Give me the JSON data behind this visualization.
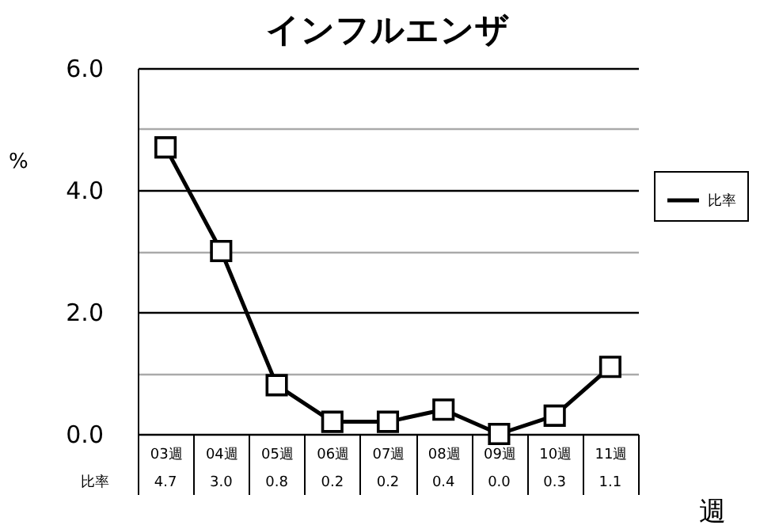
{
  "chart_data": {
    "type": "line",
    "title": "インフルエンザ",
    "ylabel": "%",
    "xlabel": "週",
    "categories": [
      "03週",
      "04週",
      "05週",
      "06週",
      "07週",
      "08週",
      "09週",
      "10週",
      "11週"
    ],
    "series": [
      {
        "name": "比率",
        "color": "#000000",
        "values": [
          4.7,
          3.0,
          0.8,
          0.2,
          0.2,
          0.4,
          0.0,
          0.3,
          1.1
        ],
        "value_labels": [
          "4.7",
          "3.0",
          "0.8",
          "0.2",
          "0.2",
          "0.4",
          "0.0",
          "0.3",
          "1.1"
        ]
      }
    ],
    "ylim": [
      0,
      6
    ],
    "yticks": [
      {
        "value": 0,
        "label": "0.0"
      },
      {
        "value": 1,
        "label": null
      },
      {
        "value": 2,
        "label": "2.0"
      },
      {
        "value": 3,
        "label": null
      },
      {
        "value": 4,
        "label": "4.0"
      },
      {
        "value": 5,
        "label": null
      },
      {
        "value": 6,
        "label": "6.0"
      }
    ],
    "grid": "y",
    "legend": "right",
    "marker": "square",
    "line_style": "solid"
  }
}
